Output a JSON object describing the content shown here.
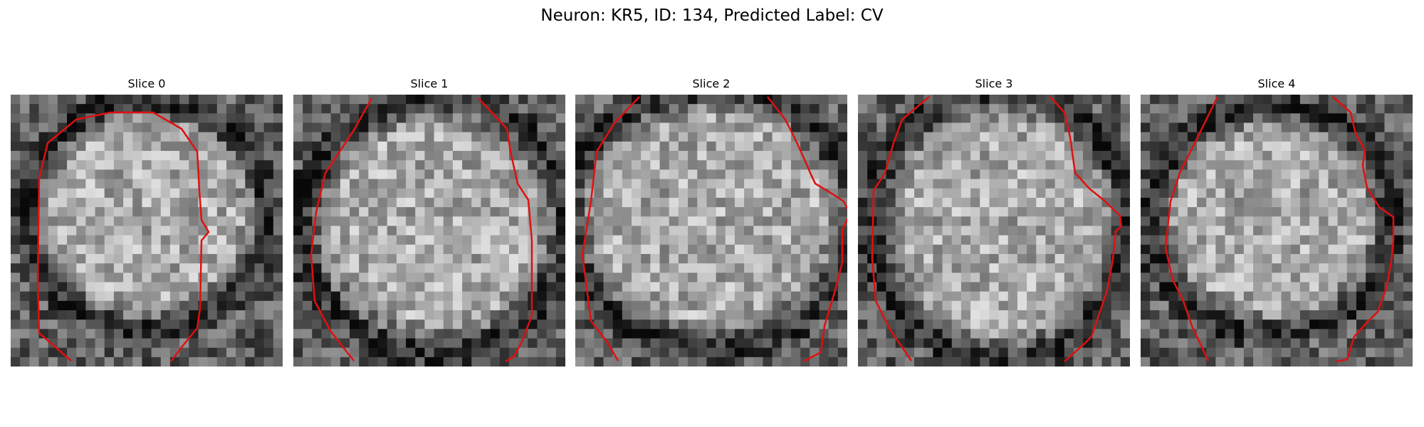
{
  "figure": {
    "title": "Neuron: KR5, ID: 134, Predicted Label: CV",
    "contour_color": "#e01010"
  },
  "panels": [
    {
      "title": "Slice 0"
    },
    {
      "title": "Slice 1"
    },
    {
      "title": "Slice 2"
    },
    {
      "title": "Slice 3"
    },
    {
      "title": "Slice 4"
    }
  ]
}
